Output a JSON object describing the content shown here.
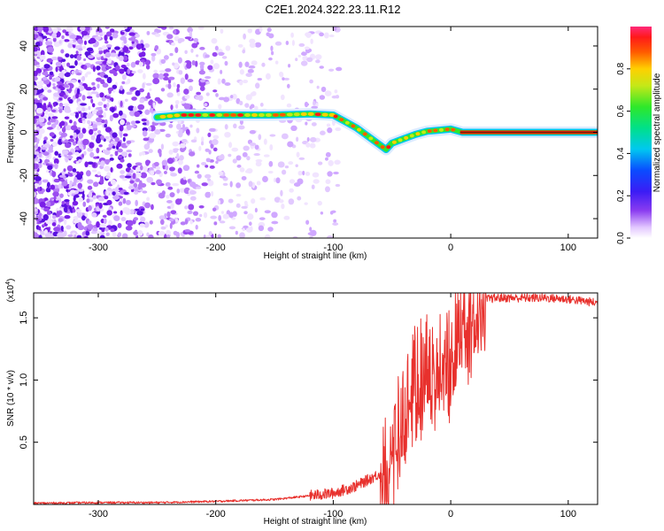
{
  "title": "C2E1.2024.322.23.11.R12",
  "chart_data": [
    {
      "type": "heatmap",
      "xlabel": "Height of straight line (km)",
      "ylabel": "Frequency (Hz)",
      "xlim": [
        -355,
        125
      ],
      "ylim": [
        -49,
        49
      ],
      "xticks": [
        -300,
        -200,
        -100,
        0,
        100
      ],
      "yticks": [
        -40,
        -20,
        0,
        20,
        40
      ],
      "colorbar": {
        "label": "Normalized spectral amplitude",
        "range": [
          0,
          1
        ],
        "ticks": [
          "0.0",
          "0.2",
          "0.4",
          "0.6",
          "0.8"
        ],
        "tick_values": [
          0,
          0.2,
          0.4,
          0.6,
          0.8
        ],
        "colormap": "rainbow (white→violet→blue→cyan→green→yellow→red→magenta)"
      },
      "ridge": {
        "description": "Dominant spectral line (frequency vs height)",
        "x": [
          -250,
          -230,
          -200,
          -150,
          -120,
          -100,
          -90,
          -80,
          -70,
          -60,
          -55,
          -50,
          -40,
          -30,
          -20,
          -10,
          0,
          10,
          50,
          100,
          125
        ],
        "y": [
          7,
          8,
          8,
          8,
          8.5,
          8,
          5,
          2,
          -2,
          -6,
          -8,
          -5,
          -3,
          -1,
          0.5,
          1,
          1.5,
          0,
          0,
          0,
          0
        ]
      },
      "noise_region": {
        "x_range": [
          -355,
          -100
        ],
        "character": "scattered low-amplitude violet speckle, densest below -260"
      }
    },
    {
      "type": "line",
      "xlabel": "Height of straight line (km)",
      "ylabel": "SNR (10 * v/v)",
      "y_multiplier": "(x10",
      "y_multiplier_exp": "4",
      "y_multiplier_close": ")",
      "xlim": [
        -355,
        125
      ],
      "ylim": [
        0,
        17000
      ],
      "xticks": [
        -300,
        -200,
        -100,
        0,
        100
      ],
      "yticks": [
        "0.5",
        "1.0",
        "1.5"
      ],
      "ytick_values": [
        5000,
        10000,
        15000
      ],
      "series": [
        {
          "color": "#e8312d",
          "x": [
            -355,
            -300,
            -250,
            -200,
            -150,
            -120,
            -100,
            -80,
            -60,
            -50,
            -40,
            -30,
            -20,
            -10,
            0,
            10,
            20,
            30,
            40,
            60,
            80,
            100,
            125
          ],
          "y": [
            100,
            150,
            150,
            250,
            400,
            700,
            900,
            1500,
            2500,
            4500,
            7500,
            10500,
            11500,
            12000,
            12500,
            14500,
            16000,
            16500,
            16600,
            16600,
            16600,
            16500,
            16200
          ]
        }
      ]
    }
  ]
}
